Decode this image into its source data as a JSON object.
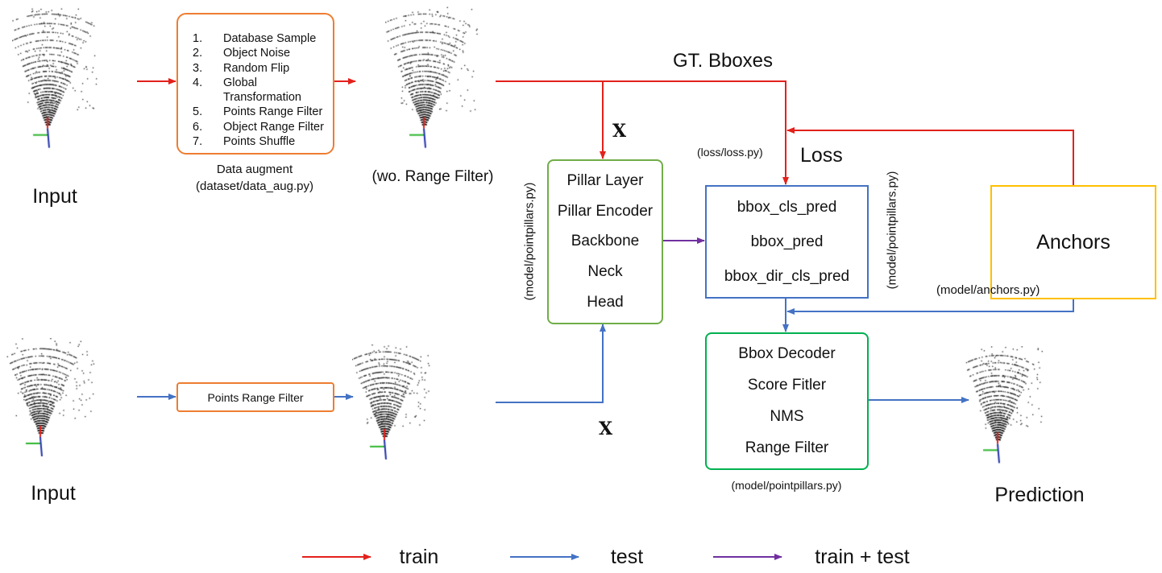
{
  "colors": {
    "train": "#e3211c",
    "test": "#4472c4",
    "train_test": "#7030a0",
    "augment_box": "#ed7d31",
    "pillar_box": "#70ad47",
    "head_box": "#4472c4",
    "anchors_box": "#ffc000",
    "decoder_box": "#00b050"
  },
  "train_path": {
    "input_label": "Input",
    "augment": {
      "items": [
        {
          "n": "1.",
          "label": "Database Sample"
        },
        {
          "n": "2.",
          "label": "Object Noise"
        },
        {
          "n": "3.",
          "label": "Random Flip"
        },
        {
          "n": "4.",
          "label": "Global Transformation"
        },
        {
          "n": "5.",
          "label": "Points Range Filter"
        },
        {
          "n": "6.",
          "label": "Object Range Filter"
        },
        {
          "n": "7.",
          "label": "Points Shuffle"
        }
      ],
      "caption": "Data augment",
      "file": "(dataset/data_aug.py)"
    },
    "augmented_label": "(wo. Range Filter)",
    "gt_label": "GT. Bboxes",
    "x_label": "X"
  },
  "test_path": {
    "input_label": "Input",
    "filter_label": "Points Range Filter",
    "x_label": "X"
  },
  "model": {
    "items": [
      "Pillar Layer",
      "Pillar Encoder",
      "Backbone",
      "Neck",
      "Head"
    ],
    "file": "(model/pointpillars.py)"
  },
  "head_outputs": {
    "items": [
      "bbox_cls_pred",
      "bbox_pred",
      "bbox_dir_cls_pred"
    ],
    "file": "(model/pointpillars.py)"
  },
  "loss": {
    "label": "Loss",
    "file": "(loss/loss.py)"
  },
  "anchors": {
    "label": "Anchors",
    "file": "(model/anchors.py)"
  },
  "postprocess": {
    "items": [
      "Bbox Decoder",
      "Score Fitler",
      "NMS",
      "Range Filter"
    ],
    "file": "(model/pointpillars.py)"
  },
  "prediction_label": "Prediction",
  "legend": [
    {
      "label": "train",
      "color": "#e3211c"
    },
    {
      "label": "test",
      "color": "#4472c4"
    },
    {
      "label": "train + test",
      "color": "#7030a0"
    }
  ]
}
